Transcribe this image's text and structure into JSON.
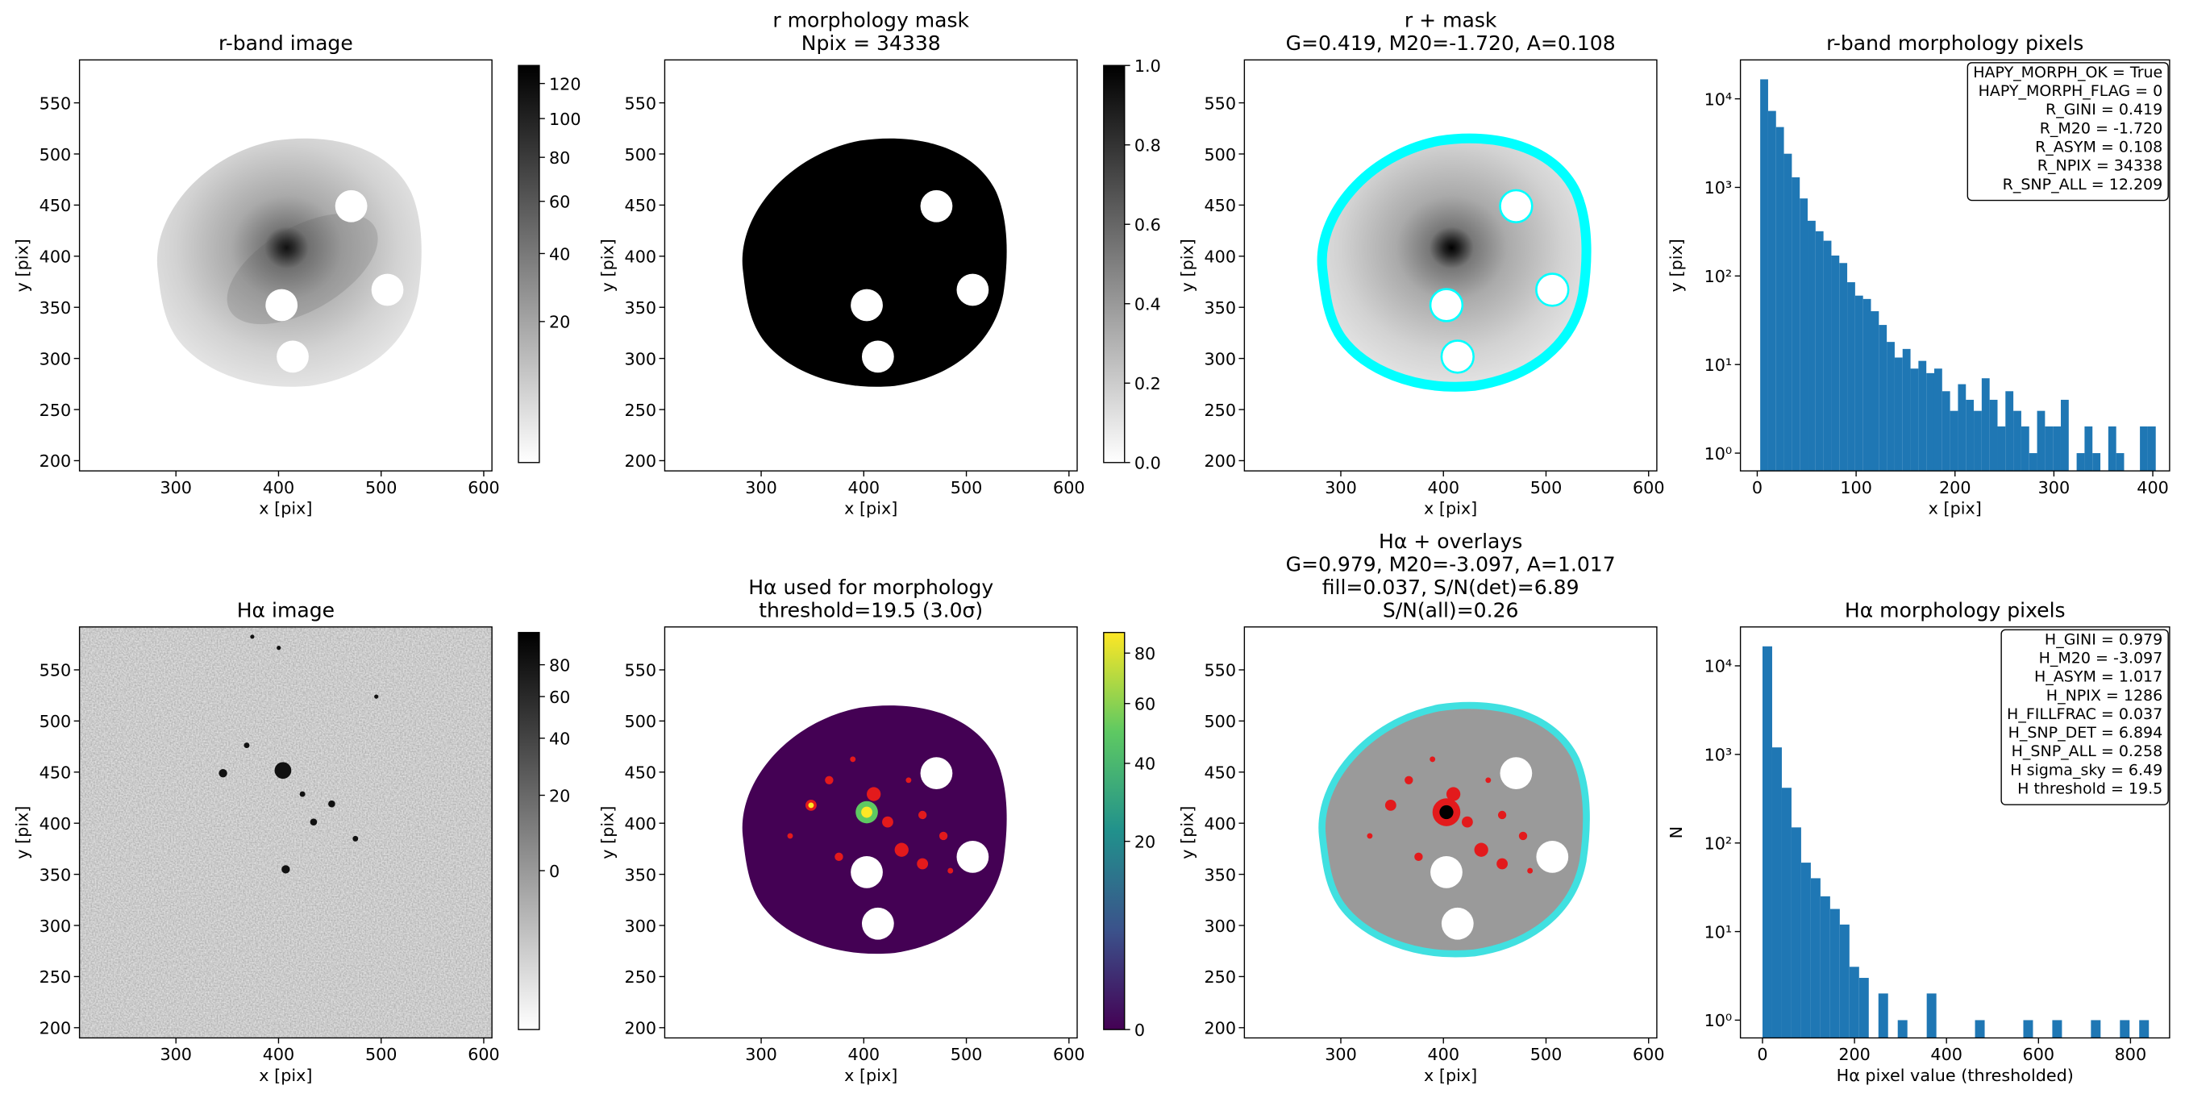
{
  "chart_data": [
    {
      "type": "image",
      "title": "r-band image",
      "xlabel": "x [pix]",
      "ylabel": "y [pix]",
      "xlim": [
        206,
        608
      ],
      "ylim": [
        190,
        592
      ],
      "xticks": [
        300,
        400,
        500,
        600
      ],
      "yticks": [
        200,
        250,
        300,
        350,
        400,
        450,
        500,
        550
      ],
      "colorbar": {
        "cmap": "gray_r",
        "scale": "sqrt",
        "clim": [
          0.4,
          131
        ],
        "ticks": [
          20,
          40,
          60,
          80,
          100,
          120
        ]
      }
    },
    {
      "type": "image",
      "title": [
        "r morphology mask",
        "Npix = 34338"
      ],
      "xlabel": "x [pix]",
      "ylabel": "y [pix]",
      "xlim": [
        206,
        608
      ],
      "ylim": [
        190,
        592
      ],
      "xticks": [
        300,
        400,
        500,
        600
      ],
      "yticks": [
        200,
        250,
        300,
        350,
        400,
        450,
        500,
        550
      ],
      "colorbar": {
        "cmap": "gray_r",
        "scale": "linear",
        "clim": [
          0,
          1
        ],
        "ticks": [
          {
            "value": 0,
            "label": "0.0"
          },
          0.2,
          0.4,
          0.6,
          0.8,
          {
            "value": 1,
            "label": "1.0"
          }
        ]
      }
    },
    {
      "type": "image",
      "title": [
        "r + mask",
        "G=0.419, M20=-1.720, A=0.108"
      ],
      "xlabel": "x [pix]",
      "ylabel": "y [pix]",
      "xlim": [
        206,
        608
      ],
      "ylim": [
        190,
        592
      ],
      "xticks": [
        300,
        400,
        500,
        600
      ],
      "yticks": [
        200,
        250,
        300,
        350,
        400,
        450,
        500,
        550
      ]
    },
    {
      "type": "histogram",
      "title": "r-band morphology pixels",
      "xlabel": "x [pix]",
      "ylabel": "y [pix]",
      "color": "#1f77b4",
      "log_y": true,
      "xlim": [
        -17,
        417
      ],
      "ylim": [
        0.63,
        27500
      ],
      "xticks": [
        0,
        100,
        200,
        300,
        400
      ],
      "yticks": [
        {
          "value": 1,
          "label": "10⁰"
        },
        {
          "value": 10,
          "label": "10¹"
        },
        {
          "value": 100,
          "label": "10²"
        },
        {
          "value": 1000,
          "label": "10³"
        },
        {
          "value": 10000,
          "label": "10⁴"
        }
      ],
      "bins": [
        3,
        11,
        19,
        27,
        35,
        43,
        51,
        59,
        67,
        75,
        83,
        91,
        99,
        107,
        115,
        123,
        131,
        139,
        147,
        155,
        163,
        171,
        179,
        187,
        195,
        203,
        211,
        219,
        227,
        235,
        243,
        251,
        259,
        267,
        275,
        283,
        291,
        299,
        307,
        315,
        323,
        331,
        339,
        347,
        355,
        363,
        371,
        379,
        387,
        395,
        403
      ],
      "counts": [
        16600,
        7300,
        4800,
        2400,
        1300,
        750,
        420,
        320,
        250,
        170,
        140,
        85,
        60,
        55,
        40,
        28,
        18,
        12,
        15,
        9,
        11,
        8,
        9,
        5,
        3,
        6,
        4,
        3,
        7,
        4,
        2,
        5,
        3,
        2,
        1,
        3,
        2,
        2,
        4,
        0,
        1,
        2,
        1,
        0,
        2,
        1,
        0,
        0,
        2,
        2
      ],
      "annotation_corner": "upper right",
      "annotation": [
        "HAPY_MORPH_OK = True",
        "HAPY_MORPH_FLAG = 0",
        "R_GINI = 0.419",
        "R_M20 = -1.720",
        "R_ASYM = 0.108",
        "R_NPIX = 34338",
        "R_SNP_ALL = 12.209"
      ]
    },
    {
      "type": "image",
      "title": "Hα image",
      "xlabel": "x [pix]",
      "ylabel": "y [pix]",
      "xlim": [
        206,
        608
      ],
      "ylim": [
        190,
        592
      ],
      "xticks": [
        300,
        400,
        500,
        600
      ],
      "yticks": [
        200,
        250,
        300,
        350,
        400,
        450,
        500,
        550
      ],
      "colorbar": {
        "cmap": "gray_r",
        "scale": "asinh",
        "clim": [
          -52,
          106
        ],
        "ticks": [
          0,
          20,
          40,
          60,
          80
        ]
      }
    },
    {
      "type": "image",
      "title": [
        "Hα used for morphology",
        "threshold=19.5 (3.0σ)"
      ],
      "xlabel": "x [pix]",
      "ylabel": "y [pix]",
      "xlim": [
        206,
        608
      ],
      "ylim": [
        190,
        592
      ],
      "xticks": [
        300,
        400,
        500,
        600
      ],
      "yticks": [
        200,
        250,
        300,
        350,
        400,
        450,
        500,
        550
      ],
      "colorbar": {
        "cmap": "viridis",
        "scale": "sqrt",
        "clim": [
          0,
          89
        ],
        "ticks": [
          0,
          20,
          40,
          60,
          80
        ]
      }
    },
    {
      "type": "image",
      "title": [
        "Hα + overlays",
        "G=0.979, M20=-3.097, A=1.017",
        "fill=0.037, S/N(det)=6.89",
        "S/N(all)=0.26"
      ],
      "xlabel": "x [pix]",
      "ylabel": "y [pix]",
      "xlim": [
        206,
        608
      ],
      "ylim": [
        190,
        592
      ],
      "xticks": [
        300,
        400,
        500,
        600
      ],
      "yticks": [
        200,
        250,
        300,
        350,
        400,
        450,
        500,
        550
      ]
    },
    {
      "type": "histogram",
      "title": "Hα morphology pixels",
      "xlabel": "Hα pixel value (thresholded)",
      "ylabel": "N",
      "color": "#1f77b4",
      "log_y": true,
      "xlim": [
        -48,
        885
      ],
      "ylim": [
        0.63,
        27500
      ],
      "xticks": [
        0,
        200,
        400,
        600,
        800
      ],
      "yticks": [
        {
          "value": 1,
          "label": "10⁰"
        },
        {
          "value": 10,
          "label": "10¹"
        },
        {
          "value": 100,
          "label": "10²"
        },
        {
          "value": 1000,
          "label": "10³"
        },
        {
          "value": 10000,
          "label": "10⁴"
        }
      ],
      "bins": [
        0,
        21,
        42,
        63,
        84,
        105,
        126,
        147,
        168,
        189,
        210,
        231,
        252,
        273,
        294,
        315,
        336,
        357,
        378,
        399,
        420,
        441,
        462,
        483,
        504,
        525,
        546,
        567,
        588,
        609,
        630,
        651,
        672,
        693,
        714,
        735,
        756,
        777,
        798,
        819,
        840
      ],
      "counts": [
        16600,
        1200,
        420,
        150,
        60,
        40,
        25,
        18,
        12,
        4,
        3,
        0,
        2,
        0,
        1,
        0,
        0,
        2,
        0,
        0,
        0,
        0,
        1,
        0,
        0,
        0,
        0,
        1,
        0,
        0,
        1,
        0,
        0,
        0,
        1,
        0,
        0,
        1,
        0,
        1
      ],
      "annotation_corner": "upper right",
      "annotation": [
        "H_GINI = 0.979",
        "H_M20 = -3.097",
        "H_ASYM = 1.017",
        "H_NPIX = 1286",
        "H_FILLFRAC = 0.037",
        "H_SNP_DET = 6.894",
        "H_SNP_ALL = 0.258",
        "H sigma_sky = 6.49",
        "H threshold = 19.5"
      ]
    }
  ]
}
